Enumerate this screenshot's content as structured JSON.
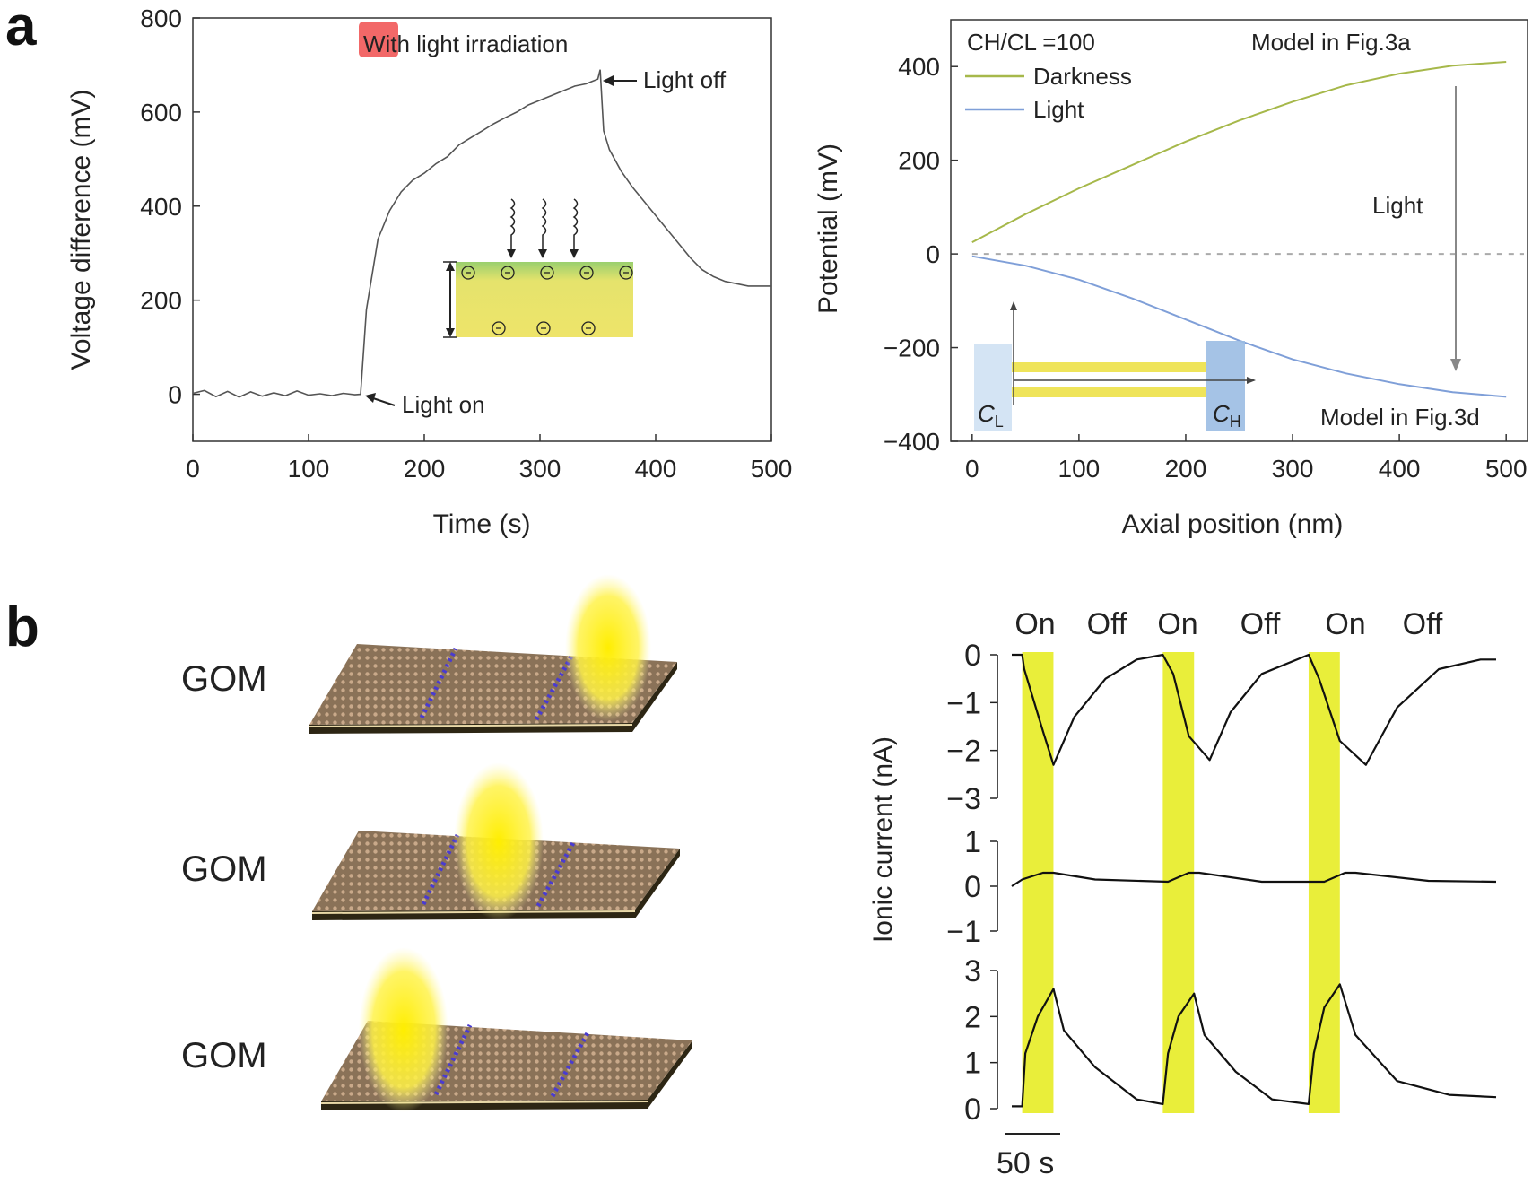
{
  "panels": {
    "a_label": "a",
    "b_label": "b"
  },
  "chart_data": [
    {
      "id": "voltage_vs_time",
      "type": "line",
      "xlabel": "Time (s)",
      "ylabel": "Voltage difference (mV)",
      "xlim": [
        0,
        500
      ],
      "ylim": [
        -100,
        800
      ],
      "x_ticks": [
        "0",
        "100",
        "200",
        "300",
        "400",
        "500"
      ],
      "y_ticks": [
        "0",
        "200",
        "400",
        "600",
        "800"
      ],
      "annotations": {
        "irradiation": "With light irradiation",
        "light_off": "Light off",
        "light_on": "Light on"
      },
      "series": [
        {
          "name": "Voltage difference",
          "color": "#555555",
          "x": [
            0,
            10,
            20,
            30,
            40,
            50,
            60,
            70,
            80,
            90,
            100,
            110,
            120,
            130,
            140,
            145,
            150,
            160,
            170,
            180,
            190,
            200,
            210,
            220,
            230,
            240,
            250,
            260,
            270,
            280,
            290,
            300,
            310,
            320,
            330,
            340,
            345,
            350,
            352,
            355,
            360,
            370,
            380,
            390,
            400,
            410,
            420,
            430,
            440,
            450,
            460,
            470,
            480,
            490,
            500
          ],
          "y": [
            2,
            8,
            -5,
            6,
            -6,
            5,
            -4,
            3,
            -3,
            7,
            -2,
            1,
            -3,
            2,
            -1,
            0,
            180,
            330,
            390,
            430,
            455,
            470,
            490,
            505,
            530,
            545,
            560,
            575,
            588,
            600,
            615,
            625,
            635,
            645,
            655,
            660,
            665,
            670,
            690,
            560,
            520,
            475,
            440,
            410,
            380,
            350,
            320,
            290,
            265,
            250,
            240,
            235,
            230,
            230,
            230
          ]
        }
      ]
    },
    {
      "id": "potential_vs_position",
      "type": "line",
      "xlabel": "Axial position (nm)",
      "ylabel": "Potential (mV)",
      "xlim": [
        -20,
        520
      ],
      "ylim": [
        -400,
        500
      ],
      "x_ticks": [
        "0",
        "100",
        "200",
        "300",
        "400",
        "500"
      ],
      "y_ticks": [
        "-400",
        "-200",
        "0",
        "200",
        "400"
      ],
      "legend": {
        "ratio_label": "CH/CL =100",
        "darkness": "Darkness",
        "light": "Light"
      },
      "annotations": {
        "model_a": "Model in Fig.3a",
        "model_d": "Model in Fig.3d",
        "arrow_label": "Light",
        "cl": "CL",
        "ch": "CH"
      },
      "series": [
        {
          "name": "Darkness",
          "color": "#a6b84a",
          "x": [
            0,
            50,
            100,
            150,
            200,
            250,
            300,
            350,
            400,
            450,
            500
          ],
          "y": [
            25,
            85,
            140,
            190,
            240,
            285,
            325,
            360,
            385,
            402,
            410
          ]
        },
        {
          "name": "Light",
          "color": "#7f9fd8",
          "x": [
            0,
            50,
            100,
            150,
            200,
            250,
            300,
            350,
            400,
            450,
            500
          ],
          "y": [
            -5,
            -25,
            -55,
            -95,
            -140,
            -185,
            -225,
            -255,
            -278,
            -295,
            -305
          ]
        }
      ]
    },
    {
      "id": "ionic_current",
      "type": "line",
      "ylabel": "Ionic current (nA)",
      "on_off_labels": [
        "On",
        "Off",
        "On",
        "Off",
        "On",
        "Off"
      ],
      "scale_bar": "50 s",
      "subplots": [
        {
          "ylim": [
            -3,
            0
          ],
          "y_ticks": [
            "0",
            "-1",
            "-2",
            "-3"
          ],
          "x": [
            0,
            10,
            12,
            30,
            40,
            60,
            90,
            120,
            145,
            155,
            170,
            190,
            210,
            240,
            285,
            295,
            315,
            340,
            370,
            410,
            450,
            465
          ],
          "y": [
            0,
            0,
            -0.3,
            -1.6,
            -2.3,
            -1.3,
            -0.5,
            -0.1,
            0,
            -0.4,
            -1.7,
            -2.2,
            -1.2,
            -0.4,
            0,
            -0.5,
            -1.8,
            -2.3,
            -1.1,
            -0.3,
            -0.1,
            -0.1
          ]
        },
        {
          "ylim": [
            -1,
            1
          ],
          "y_ticks": [
            "1",
            "0",
            "-1"
          ],
          "x": [
            0,
            10,
            30,
            40,
            80,
            150,
            170,
            180,
            240,
            300,
            320,
            330,
            400,
            465
          ],
          "y": [
            0,
            0.15,
            0.3,
            0.3,
            0.15,
            0.1,
            0.3,
            0.3,
            0.1,
            0.1,
            0.3,
            0.3,
            0.12,
            0.1
          ]
        },
        {
          "ylim": [
            0,
            3
          ],
          "y_ticks": [
            "3",
            "2",
            "1",
            "0"
          ],
          "x": [
            0,
            10,
            13,
            25,
            40,
            50,
            80,
            120,
            145,
            150,
            160,
            175,
            185,
            215,
            250,
            285,
            290,
            300,
            315,
            330,
            370,
            420,
            465
          ],
          "y": [
            0.05,
            0.05,
            1.2,
            2.0,
            2.6,
            1.7,
            0.9,
            0.2,
            0.1,
            1.2,
            2.0,
            2.5,
            1.6,
            0.8,
            0.2,
            0.1,
            1.2,
            2.2,
            2.7,
            1.6,
            0.6,
            0.3,
            0.25
          ]
        }
      ],
      "on_windows": [
        [
          10,
          40
        ],
        [
          145,
          175
        ],
        [
          285,
          315
        ]
      ]
    }
  ],
  "schematics": {
    "gom_labels": [
      "GOM",
      "GOM",
      "GOM"
    ]
  },
  "colors": {
    "highlight_yellow": "#e9ee3a",
    "light_beam": "#ffee00",
    "membrane": "#8a7258",
    "annotation_red": "#f04d4d"
  }
}
